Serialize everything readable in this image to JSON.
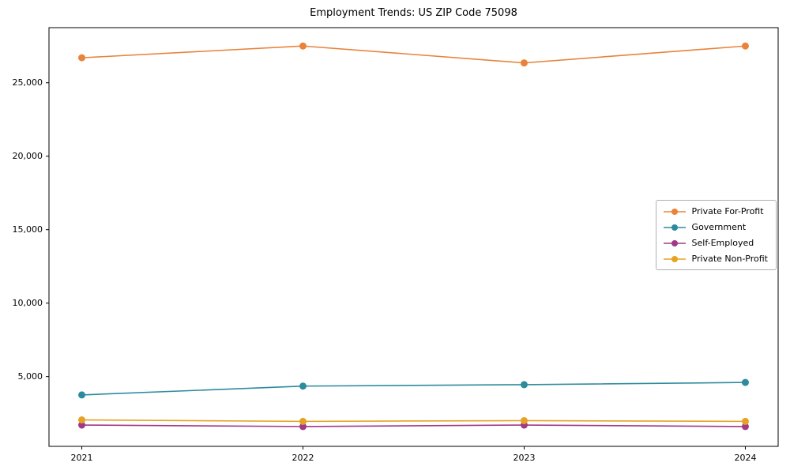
{
  "chart_data": {
    "type": "line",
    "title": "Employment Trends: US ZIP Code 75098",
    "x": [
      "2021",
      "2022",
      "2023",
      "2024"
    ],
    "series": [
      {
        "name": "Private For-Profit",
        "color": "#e8833a",
        "values": [
          26700,
          27500,
          26350,
          27500
        ]
      },
      {
        "name": "Government",
        "color": "#2e8b9e",
        "values": [
          3750,
          4350,
          4450,
          4600
        ]
      },
      {
        "name": "Self-Employed",
        "color": "#a03a87",
        "values": [
          1700,
          1600,
          1700,
          1600
        ]
      },
      {
        "name": "Private Non-Profit",
        "color": "#e5a224",
        "values": [
          2050,
          1950,
          2000,
          1950
        ]
      }
    ],
    "yticks": [
      5000,
      10000,
      15000,
      20000,
      25000
    ],
    "ylim": [
      250,
      28750
    ],
    "xlabel": "",
    "ylabel": "",
    "grid": false,
    "legend_position": "center-right",
    "frame_color": "#000000",
    "marker": "circle"
  }
}
